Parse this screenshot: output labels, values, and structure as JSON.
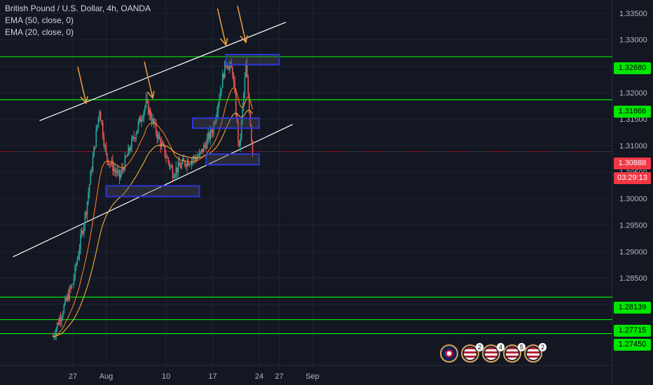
{
  "legend": {
    "title": "British Pound / U.S. Dollar, 4h, OANDA",
    "ema50": "EMA (50, close, 0)",
    "ema20": "EMA (20, close, 0)"
  },
  "colors": {
    "background": "#131722",
    "bull": "#26a69a",
    "bear": "#ef5350",
    "ema20": "#f57c1f",
    "ema50": "#f2b13b",
    "level": "#00e600",
    "zone": "#2b37d8",
    "channel": "#ffffff",
    "arrow": "#f0a040"
  },
  "price_tags": {
    "level_1": "1.32680",
    "level_2": "1.31866",
    "current": "1.30888",
    "countdown": "03:29:13",
    "level_3": "1.28139",
    "level_4": "1.27715",
    "level_5": "1.27450"
  },
  "events": [
    {
      "icon": "uk-flag-icon",
      "count": ""
    },
    {
      "icon": "us-flag-icon",
      "count": "2"
    },
    {
      "icon": "us-flag-icon",
      "count": "4"
    },
    {
      "icon": "us-flag-icon",
      "count": "5"
    },
    {
      "icon": "us-flag-icon",
      "count": "2"
    }
  ],
  "chart_data": {
    "type": "candlestick",
    "title": "British Pound / U.S. Dollar, 4h, OANDA",
    "ylim": [
      1.2685,
      1.3375
    ],
    "y_ticks": [
      "1.33500",
      "1.33000",
      "1.32500",
      "1.32000",
      "1.31500",
      "1.31000",
      "1.30500",
      "1.30000",
      "1.29500",
      "1.29000",
      "1.28500",
      "1.28000"
    ],
    "x_ticks": [
      "27",
      "Aug",
      "10",
      "17",
      "24",
      "27",
      "Sep"
    ],
    "horizontal_levels": [
      1.3268,
      1.31866,
      1.28139,
      1.27715,
      1.2745
    ],
    "current_price": 1.30888,
    "channel_upper": [
      {
        "x": "Jul 22",
        "y": 1.3147
      },
      {
        "x": "Aug 28",
        "y": 1.3333
      }
    ],
    "channel_lower": [
      {
        "x": "Jul 18",
        "y": 1.289
      },
      {
        "x": "Aug 29",
        "y": 1.314
      }
    ],
    "zones": [
      {
        "x0": "Aug 19",
        "x1": "Aug 27",
        "y0": 1.3253,
        "y1": 1.3272
      },
      {
        "x0": "Aug 14",
        "x1": "Aug 24",
        "y0": 1.3133,
        "y1": 1.3152
      },
      {
        "x0": "Aug 16",
        "x1": "Aug 24",
        "y0": 1.3064,
        "y1": 1.3084
      },
      {
        "x0": "Aug 1",
        "x1": "Aug 15",
        "y0": 1.3004,
        "y1": 1.3024
      }
    ],
    "arrow_targets": [
      {
        "x": "Jul 29",
        "y": 1.318
      },
      {
        "x": "Aug 8",
        "y": 1.319
      },
      {
        "x": "Aug 19",
        "y": 1.329
      },
      {
        "x": "Aug 22",
        "y": 1.3295
      }
    ],
    "price_path": [
      {
        "x": "Jul 24",
        "y": 1.274
      },
      {
        "x": "Jul 27",
        "y": 1.284
      },
      {
        "x": "Jul 29",
        "y": 1.298
      },
      {
        "x": "Jul 31",
        "y": 1.317
      },
      {
        "x": "Aug 1",
        "y": 1.308
      },
      {
        "x": "Aug 3",
        "y": 1.304
      },
      {
        "x": "Aug 5",
        "y": 1.311
      },
      {
        "x": "Aug 7",
        "y": 1.318
      },
      {
        "x": "Aug 9",
        "y": 1.311
      },
      {
        "x": "Aug 11",
        "y": 1.305
      },
      {
        "x": "Aug 13",
        "y": 1.307
      },
      {
        "x": "Aug 15",
        "y": 1.308
      },
      {
        "x": "Aug 17",
        "y": 1.313
      },
      {
        "x": "Aug 19",
        "y": 1.326
      },
      {
        "x": "Aug 20",
        "y": 1.324
      },
      {
        "x": "Aug 21",
        "y": 1.309
      },
      {
        "x": "Aug 22",
        "y": 1.325
      },
      {
        "x": "Aug 23",
        "y": 1.309
      }
    ]
  }
}
